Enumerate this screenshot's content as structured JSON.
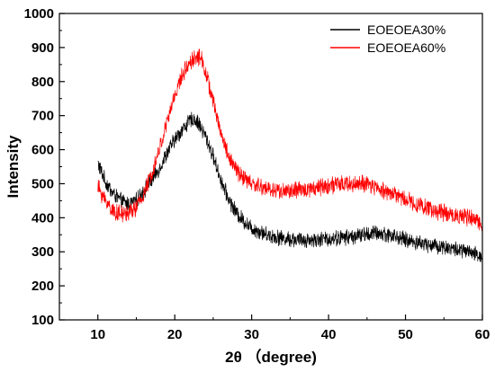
{
  "chart_data": {
    "type": "line",
    "title": "",
    "xlabel": "2θ （degree)",
    "ylabel": "Intensity",
    "xlim": [
      5,
      60
    ],
    "ylim": [
      100,
      1000
    ],
    "xticks": [
      10,
      20,
      30,
      40,
      50,
      60
    ],
    "yticks": [
      100,
      200,
      300,
      400,
      500,
      600,
      700,
      800,
      900,
      1000
    ],
    "grid": false,
    "legend_position": "top-right",
    "series": [
      {
        "name": "EOEOEA30%",
        "color": "#000000",
        "noise": 20,
        "x": [
          10,
          11,
          12,
          13,
          14,
          15,
          16,
          17,
          18,
          19,
          20,
          21,
          22,
          22.5,
          23,
          24,
          25,
          26,
          27,
          28,
          29,
          30,
          32,
          34,
          36,
          38,
          40,
          42,
          44,
          46,
          48,
          50,
          52,
          54,
          56,
          58,
          60
        ],
        "values": [
          560,
          505,
          470,
          450,
          440,
          450,
          480,
          510,
          545,
          590,
          630,
          660,
          685,
          690,
          680,
          640,
          580,
          510,
          455,
          415,
          390,
          370,
          350,
          340,
          335,
          335,
          338,
          342,
          348,
          355,
          350,
          335,
          325,
          318,
          310,
          300,
          285
        ]
      },
      {
        "name": "EOEOEA60%",
        "color": "#ff0000",
        "noise": 22,
        "x": [
          10,
          11,
          12,
          13,
          14,
          15,
          16,
          17,
          18,
          19,
          20,
          21,
          22,
          23,
          23.5,
          24,
          25,
          26,
          27,
          28,
          29,
          30,
          32,
          34,
          36,
          38,
          40,
          42,
          44,
          46,
          48,
          50,
          52,
          54,
          56,
          58,
          60
        ],
        "values": [
          490,
          450,
          420,
          410,
          415,
          430,
          470,
          530,
          600,
          680,
          760,
          820,
          860,
          875,
          865,
          830,
          740,
          650,
          580,
          540,
          515,
          500,
          485,
          478,
          480,
          488,
          495,
          498,
          500,
          490,
          475,
          455,
          435,
          420,
          410,
          400,
          385
        ]
      }
    ]
  }
}
